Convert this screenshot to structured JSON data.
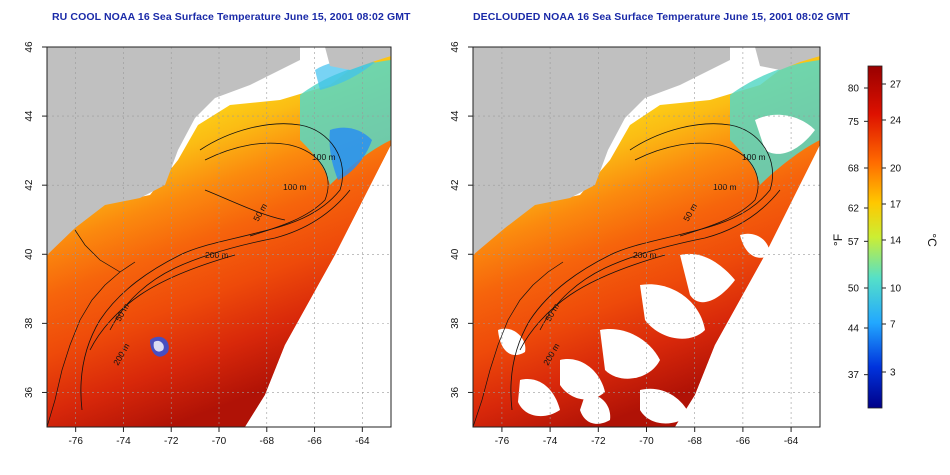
{
  "maps": [
    {
      "title": "RU COOL NOAA 16 Sea Surface Temperature June 15, 2001 08:02 GMT",
      "variant": "raw"
    },
    {
      "title": "DECLOUDED NOAA 16 Sea Surface Temperature June 15, 2001 08:02 GMT",
      "variant": "declouded"
    }
  ],
  "axes": {
    "lon_ticks": [
      "-76",
      "-74",
      "-72",
      "-70",
      "-68",
      "-66",
      "-64"
    ],
    "lat_ticks": [
      "46",
      "44",
      "42",
      "40",
      "38",
      "36"
    ],
    "lon_range": [
      -77.2,
      -62.8
    ],
    "lat_range": [
      35.0,
      46.0
    ],
    "grid": "dotted"
  },
  "contours": {
    "labels_left": [
      "100 m",
      "100 m",
      "50 m",
      "200 m",
      "50 m",
      "200 m"
    ],
    "labels_right": [
      "100 m",
      "100 m",
      "50 m",
      "200 m",
      "50 m",
      "200 m"
    ]
  },
  "colorbar": {
    "fahrenheit_ticks": [
      "80",
      "75",
      "68",
      "62",
      "57",
      "50",
      "44",
      "37"
    ],
    "celsius_ticks": [
      "27",
      "24",
      "20",
      "17",
      "14",
      "10",
      "7",
      "3"
    ],
    "fahrenheit_unit": "°F",
    "celsius_unit": "°C",
    "colors": [
      "#990000",
      "#dd1100",
      "#ff6a00",
      "#ffc800",
      "#ccee33",
      "#55e0c8",
      "#22a8ff",
      "#0033dd",
      "#000088"
    ]
  },
  "colors": {
    "land": "#c0c0c0",
    "cloud": "#ffffff",
    "title": "#1a2aa8"
  }
}
